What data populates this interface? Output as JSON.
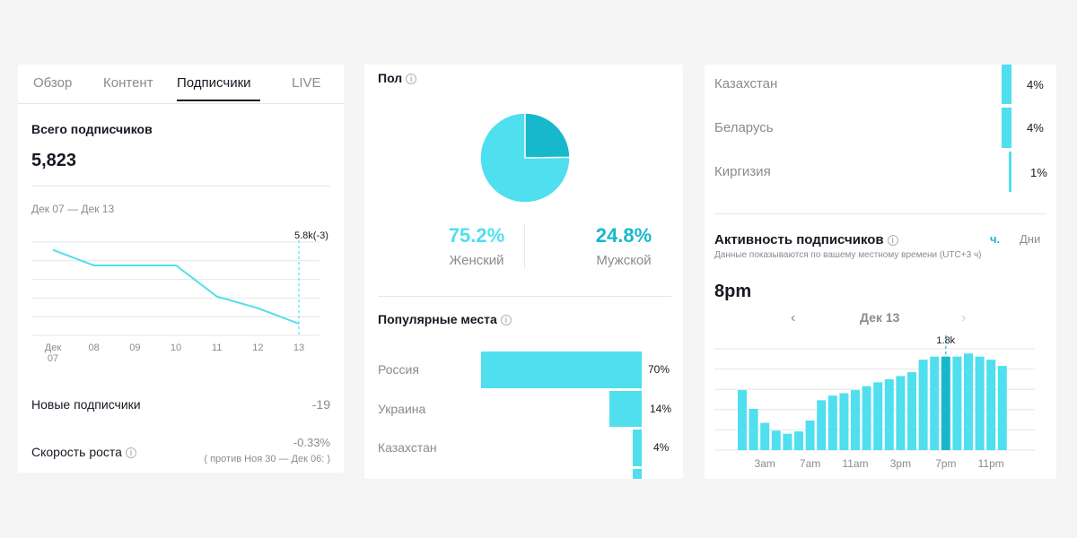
{
  "colors": {
    "accent": "#4fdfee",
    "accent_dark": "#17b8cc",
    "text": "#161823",
    "muted": "#8a8b91",
    "grid": "#e6e6e6"
  },
  "overview": {
    "tabs": [
      "Обзор",
      "Контент",
      "Подписчики",
      "LIVE"
    ],
    "active_tab": 2,
    "total_label": "Всего подписчиков",
    "total_value": "5,823",
    "date_range": "Дек 07 — Дек 13",
    "new_label": "Новые подписчики",
    "new_value": "-19",
    "growth_label": "Скорость роста",
    "growth_value": "-0.33%",
    "growth_compare": "( против Ноя 30 — Дек 06: )"
  },
  "gender": {
    "title": "Пол",
    "female_value": "75.2%",
    "female_label": "Женский",
    "male_value": "24.8%",
    "male_label": "Мужской"
  },
  "places": {
    "title": "Популярные места",
    "items": [
      {
        "name": "Россия",
        "value": "70%"
      },
      {
        "name": "Украина",
        "value": "14%"
      },
      {
        "name": "Казахстан",
        "value": "4%"
      }
    ]
  },
  "places_cont": {
    "items": [
      {
        "name": "Казахстан",
        "value": "4%"
      },
      {
        "name": "Беларусь",
        "value": "4%"
      },
      {
        "name": "Киргизия",
        "value": "1%"
      }
    ]
  },
  "activity": {
    "title": "Активность подписчиков",
    "hint": "Данные показываются по вашему местному времени (UTC+3 ч)",
    "toggle_hours": "ч.",
    "toggle_days": "Дни",
    "selected_time": "8pm",
    "date": "Дек 13",
    "prev": "‹",
    "next": "›"
  },
  "chart_data": [
    {
      "type": "line",
      "x": [
        "Дек 07",
        "08",
        "09",
        "10",
        "11",
        "12",
        "13"
      ],
      "values": [
        5842,
        5838,
        5838,
        5838,
        5830,
        5827,
        5823
      ],
      "annotation": "5.8k(-3)",
      "ylim": [
        5820,
        5844
      ]
    },
    {
      "type": "pie",
      "categories": [
        "Женский",
        "Мужской"
      ],
      "values": [
        75.2,
        24.8
      ]
    },
    {
      "type": "bar",
      "orientation": "horizontal",
      "categories": [
        "Россия",
        "Украина",
        "Казахстан",
        "Беларусь",
        "Киргизия"
      ],
      "values": [
        70,
        14,
        4,
        4,
        1
      ]
    },
    {
      "type": "bar",
      "x_ticks": [
        "3am",
        "7am",
        "11am",
        "3pm",
        "7pm",
        "11pm"
      ],
      "values": [
        0.77,
        0.53,
        0.35,
        0.25,
        0.21,
        0.24,
        0.38,
        0.64,
        0.7,
        0.73,
        0.77,
        0.82,
        0.87,
        0.91,
        0.95,
        1.0,
        1.16,
        1.2,
        1.2,
        1.2,
        1.24,
        1.2,
        1.16,
        1.08
      ],
      "highlight_index": 18,
      "annotation": "1.8k"
    }
  ]
}
